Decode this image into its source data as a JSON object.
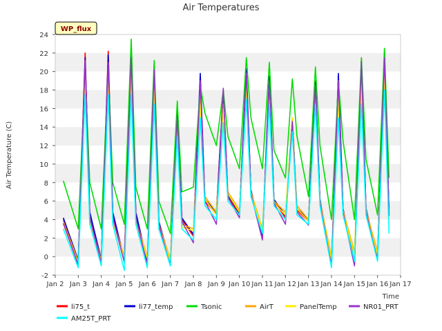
{
  "chart_data": {
    "type": "line",
    "title": "Air Temperatures",
    "badge": "WP_flux",
    "xlabel": "Time",
    "ylabel": "Air Temperature (C)",
    "ylim": [
      -2,
      24
    ],
    "yticks": [
      -2,
      0,
      2,
      4,
      6,
      8,
      10,
      12,
      14,
      16,
      18,
      20,
      22,
      24
    ],
    "xlim": [
      2,
      17
    ],
    "xticks": [
      {
        "v": 2,
        "label": "Jan 2"
      },
      {
        "v": 3,
        "label": "Jan 3"
      },
      {
        "v": 4,
        "label": "Jan 4"
      },
      {
        "v": 5,
        "label": "Jan 5"
      },
      {
        "v": 6,
        "label": "Jan 6"
      },
      {
        "v": 7,
        "label": "Jan 7"
      },
      {
        "v": 8,
        "label": "Jan 8"
      },
      {
        "v": 9,
        "label": "Jan 9"
      },
      {
        "v": 10,
        "label": "Jan 10"
      },
      {
        "v": 11,
        "label": "Jan 11"
      },
      {
        "v": 12,
        "label": "Jan 12"
      },
      {
        "v": 13,
        "label": "Jan 13"
      },
      {
        "v": 14,
        "label": "Jan 14"
      },
      {
        "v": 15,
        "label": "Jan 15"
      },
      {
        "v": 16,
        "label": "Jan 16"
      },
      {
        "v": 17,
        "label": "Jan 17"
      }
    ],
    "grid": "horizontal bands",
    "legend_position": "bottom",
    "daily_x": [
      2.35,
      3.0,
      3.3,
      3.5,
      4.0,
      4.3,
      4.5,
      5.0,
      5.3,
      5.5,
      6.0,
      6.3,
      6.5,
      7.0,
      7.3,
      7.5,
      8.0,
      8.3,
      8.5,
      9.0,
      9.3,
      9.5,
      10.0,
      10.3,
      10.5,
      11.0,
      11.3,
      11.5,
      12.0,
      12.3,
      12.5,
      13.0,
      13.3,
      13.5,
      14.0,
      14.3,
      14.5,
      15.0,
      15.3,
      15.5,
      16.0,
      16.3,
      16.5
    ],
    "series": [
      {
        "name": "li75_t",
        "color": "#ff0000",
        "y": [
          4.0,
          -0.6,
          22.0,
          4.5,
          -0.5,
          22.2,
          4.5,
          -0.5,
          22.5,
          4.5,
          -0.8,
          20.8,
          3.5,
          -0.8,
          15.5,
          4.0,
          2.2,
          19.0,
          6.0,
          4.6,
          18.0,
          6.5,
          4.5,
          20.0,
          7.0,
          2.0,
          19.0,
          6.0,
          4.2,
          15.0,
          5.0,
          3.8,
          19.0,
          6.0,
          -1.0,
          19.5,
          5.0,
          -0.8,
          21.5,
          5.0,
          -0.2,
          22.2,
          4.5
        ]
      },
      {
        "name": "li77_temp",
        "color": "#0000cc",
        "y": [
          4.2,
          -0.4,
          21.5,
          4.8,
          -0.3,
          21.8,
          4.8,
          -0.3,
          22.2,
          4.8,
          -0.6,
          20.5,
          3.8,
          -0.6,
          15.2,
          4.2,
          2.4,
          19.8,
          6.2,
          4.8,
          17.8,
          6.7,
          4.7,
          20.3,
          7.2,
          2.2,
          19.5,
          6.2,
          4.4,
          14.8,
          5.2,
          4.0,
          18.8,
          6.2,
          -0.8,
          19.8,
          5.2,
          -0.6,
          21.2,
          5.2,
          0.0,
          22.0,
          4.7
        ]
      },
      {
        "name": "Tsonic",
        "color": "#00dd00",
        "y": [
          8.2,
          3.0,
          20.0,
          8.0,
          3.0,
          20.5,
          8.0,
          3.5,
          23.5,
          7.5,
          3.0,
          21.2,
          6.0,
          2.5,
          16.8,
          7.0,
          7.5,
          18.5,
          15.5,
          12.0,
          18.0,
          13.0,
          9.5,
          21.5,
          15.0,
          9.5,
          21.0,
          11.5,
          8.5,
          19.2,
          13.0,
          6.5,
          20.5,
          12.0,
          4.0,
          19.0,
          12.5,
          4.0,
          21.5,
          10.5,
          4.5,
          22.5,
          8.5
        ]
      },
      {
        "name": "AirT",
        "color": "#ffa500",
        "y": [
          3.8,
          -0.5,
          19.5,
          4.0,
          -0.4,
          19.5,
          4.0,
          0.0,
          20.0,
          4.0,
          0.0,
          18.5,
          3.5,
          -0.3,
          14.5,
          3.5,
          3.0,
          17.0,
          6.5,
          4.8,
          16.5,
          7.0,
          5.0,
          18.5,
          7.0,
          3.0,
          17.5,
          6.0,
          4.8,
          14.5,
          5.5,
          4.0,
          17.0,
          6.0,
          0.0,
          17.5,
          5.0,
          0.5,
          19.0,
          5.0,
          0.5,
          20.0,
          4.2
        ]
      },
      {
        "name": "PanelTemp",
        "color": "#ffee00",
        "y": [
          3.5,
          -0.8,
          19.0,
          3.8,
          -0.6,
          19.0,
          3.8,
          -0.2,
          19.5,
          3.8,
          -0.2,
          18.0,
          3.2,
          -0.5,
          14.2,
          3.2,
          2.8,
          16.5,
          6.2,
          4.5,
          16.0,
          6.8,
          4.8,
          18.0,
          6.8,
          2.8,
          17.0,
          5.8,
          4.5,
          15.0,
          5.2,
          3.8,
          16.5,
          5.8,
          -0.3,
          17.0,
          4.8,
          0.2,
          18.5,
          4.8,
          0.2,
          19.5,
          4.0
        ]
      },
      {
        "name": "NR01_PRT",
        "color": "#9933cc",
        "y": [
          3.6,
          -0.9,
          21.2,
          4.2,
          -0.7,
          21.0,
          4.2,
          -0.6,
          21.5,
          4.2,
          -0.9,
          20.2,
          3.4,
          -1.0,
          15.0,
          3.8,
          1.5,
          19.0,
          6.0,
          3.5,
          18.2,
          6.4,
          4.2,
          19.8,
          6.8,
          1.8,
          19.0,
          5.8,
          3.5,
          14.6,
          4.8,
          3.4,
          18.5,
          5.8,
          -1.0,
          19.0,
          4.8,
          -1.0,
          21.0,
          4.8,
          -0.4,
          21.5,
          4.4
        ]
      },
      {
        "name": "AM25T_PRT",
        "color": "#00ffff",
        "y": [
          3.0,
          -1.2,
          17.5,
          3.5,
          -1.0,
          17.5,
          3.5,
          -1.5,
          17.5,
          3.5,
          -1.2,
          16.5,
          3.0,
          -1.0,
          13.0,
          3.0,
          1.8,
          15.0,
          5.5,
          4.0,
          14.5,
          6.0,
          4.5,
          17.0,
          6.5,
          2.5,
          16.5,
          5.5,
          4.0,
          13.5,
          4.5,
          3.5,
          16.5,
          5.5,
          -1.2,
          15.0,
          4.5,
          -0.5,
          16.5,
          4.5,
          -0.5,
          18.0,
          2.5
        ]
      }
    ]
  }
}
